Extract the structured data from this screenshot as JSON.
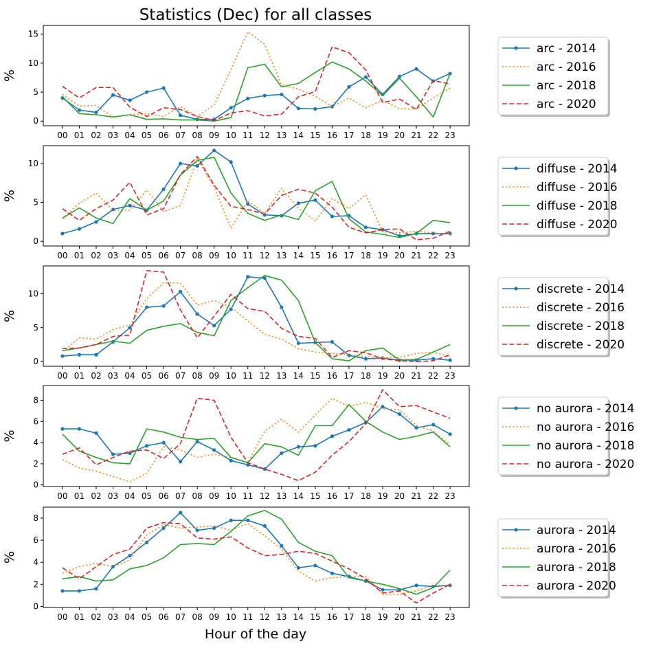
{
  "figure": {
    "title": "Statistics (Dec) for all classes",
    "xlabel": "Hour of the day"
  },
  "chart_data": [
    {
      "type": "line",
      "ylabel": "%",
      "ylim": [
        -0.8,
        16.5
      ],
      "yticks": [
        0,
        5,
        10,
        15
      ],
      "x": [
        "00",
        "01",
        "02",
        "03",
        "04",
        "05",
        "06",
        "07",
        "08",
        "09",
        "10",
        "11",
        "12",
        "13",
        "14",
        "15",
        "16",
        "17",
        "18",
        "19",
        "20",
        "21",
        "22",
        "23"
      ],
      "legend_position": "right",
      "series": [
        {
          "name": "arc - 2014",
          "color": "#1f77b4",
          "dash": "solid",
          "marker": true,
          "values": [
            4.0,
            1.9,
            1.5,
            4.5,
            3.6,
            5.0,
            5.7,
            1.0,
            0.3,
            0.3,
            2.3,
            3.9,
            4.4,
            4.6,
            2.2,
            2.1,
            2.5,
            5.9,
            7.6,
            4.6,
            7.7,
            9.0,
            6.9,
            8.2
          ]
        },
        {
          "name": "arc - 2016",
          "color": "#ff7f0e",
          "dash": "dotted",
          "marker": false,
          "values": [
            4.6,
            2.6,
            2.7,
            0.7,
            1.1,
            1.3,
            0.8,
            2.5,
            0.8,
            2.8,
            8.9,
            15.4,
            13.2,
            6.2,
            5.5,
            4.3,
            2.5,
            4.0,
            2.3,
            3.6,
            2.1,
            2.1,
            4.0,
            5.7
          ]
        },
        {
          "name": "arc - 2018",
          "color": "#2ca02c",
          "dash": "solid",
          "marker": false,
          "values": [
            4.2,
            1.3,
            1.1,
            0.7,
            1.1,
            0.3,
            0.4,
            0.2,
            0.2,
            0.0,
            0.6,
            9.2,
            9.8,
            5.9,
            6.5,
            8.4,
            10.2,
            9.0,
            6.9,
            4.4,
            7.4,
            4.2,
            0.7,
            8.2
          ]
        },
        {
          "name": "arc - 2020",
          "color": "#d62728",
          "dash": "dashed",
          "marker": false,
          "values": [
            6.0,
            4.0,
            5.8,
            5.8,
            2.4,
            0.8,
            2.3,
            2.0,
            0.8,
            0.1,
            1.4,
            1.8,
            0.9,
            1.2,
            4.2,
            5.1,
            12.8,
            11.8,
            8.8,
            3.2,
            3.8,
            2.0,
            7.0,
            6.4
          ]
        }
      ]
    },
    {
      "type": "line",
      "ylabel": "%",
      "ylim": [
        -0.6,
        12.3
      ],
      "yticks": [
        0,
        5,
        10
      ],
      "x": [
        "00",
        "01",
        "02",
        "03",
        "04",
        "05",
        "06",
        "07",
        "08",
        "09",
        "10",
        "11",
        "12",
        "13",
        "14",
        "15",
        "16",
        "17",
        "18",
        "19",
        "20",
        "21",
        "22",
        "23"
      ],
      "legend_position": "right",
      "series": [
        {
          "name": "diffuse - 2014",
          "color": "#1f77b4",
          "dash": "solid",
          "marker": true,
          "values": [
            1.0,
            1.6,
            2.5,
            4.1,
            4.6,
            4.0,
            6.7,
            10.0,
            9.7,
            11.7,
            10.2,
            4.8,
            3.4,
            3.3,
            4.9,
            5.3,
            3.2,
            3.3,
            1.8,
            1.5,
            0.7,
            1.0,
            1.0,
            1.0
          ]
        },
        {
          "name": "diffuse - 2016",
          "color": "#ff7f0e",
          "dash": "dotted",
          "marker": false,
          "values": [
            2.9,
            4.9,
            6.2,
            4.0,
            4.0,
            6.6,
            3.8,
            4.6,
            10.6,
            7.0,
            1.7,
            5.2,
            3.6,
            6.8,
            4.3,
            2.6,
            5.5,
            4.2,
            6.0,
            1.2,
            1.1,
            1.3,
            1.1,
            0.9
          ]
        },
        {
          "name": "diffuse - 2018",
          "color": "#2ca02c",
          "dash": "solid",
          "marker": false,
          "values": [
            3.0,
            4.3,
            3.0,
            2.3,
            5.5,
            4.0,
            5.2,
            8.5,
            10.4,
            10.8,
            6.2,
            3.6,
            2.7,
            3.4,
            2.8,
            6.5,
            7.7,
            2.9,
            1.2,
            0.9,
            0.5,
            1.0,
            2.7,
            2.4
          ]
        },
        {
          "name": "diffuse - 2020",
          "color": "#d62728",
          "dash": "dashed",
          "marker": false,
          "values": [
            4.2,
            2.7,
            4.2,
            5.3,
            7.6,
            3.4,
            4.2,
            8.6,
            10.9,
            7.2,
            4.5,
            4.1,
            3.5,
            5.9,
            6.7,
            6.2,
            4.4,
            1.8,
            1.1,
            1.5,
            1.6,
            0.2,
            0.4,
            1.3
          ]
        }
      ]
    },
    {
      "type": "line",
      "ylabel": "%",
      "ylim": [
        -0.7,
        14.1
      ],
      "yticks": [
        0,
        5,
        10
      ],
      "x": [
        "00",
        "01",
        "02",
        "03",
        "04",
        "05",
        "06",
        "07",
        "08",
        "09",
        "10",
        "11",
        "12",
        "13",
        "14",
        "15",
        "16",
        "17",
        "18",
        "19",
        "20",
        "21",
        "22",
        "23"
      ],
      "legend_position": "right",
      "series": [
        {
          "name": "discrete - 2014",
          "color": "#1f77b4",
          "dash": "solid",
          "marker": true,
          "values": [
            0.8,
            1.0,
            1.0,
            2.9,
            5.0,
            8.0,
            8.2,
            10.3,
            7.0,
            5.3,
            7.7,
            12.5,
            12.3,
            8.0,
            2.7,
            2.8,
            2.9,
            0.9,
            0.4,
            0.5,
            0.2,
            0.2,
            0.4,
            0.2
          ]
        },
        {
          "name": "discrete - 2016",
          "color": "#ff7f0e",
          "dash": "dotted",
          "marker": false,
          "values": [
            1.5,
            3.5,
            3.3,
            4.7,
            5.4,
            9.3,
            11.6,
            11.6,
            8.3,
            9.0,
            8.0,
            6.0,
            4.0,
            3.3,
            1.9,
            1.4,
            1.2,
            1.0,
            0.7,
            0.6,
            0.6,
            1.2,
            1.4,
            0.7
          ]
        },
        {
          "name": "discrete - 2018",
          "color": "#2ca02c",
          "dash": "solid",
          "marker": false,
          "values": [
            1.6,
            2.0,
            2.5,
            3.0,
            2.7,
            4.6,
            5.2,
            5.6,
            4.3,
            3.8,
            9.0,
            10.9,
            12.7,
            12.0,
            9.0,
            2.8,
            0.4,
            0.1,
            1.6,
            2.0,
            0.2,
            0.3,
            1.4,
            2.5
          ]
        },
        {
          "name": "discrete - 2020",
          "color": "#d62728",
          "dash": "dashed",
          "marker": false,
          "values": [
            1.9,
            2.0,
            2.5,
            3.7,
            3.9,
            13.4,
            13.2,
            7.6,
            3.5,
            6.7,
            9.9,
            7.8,
            7.4,
            4.9,
            3.7,
            3.4,
            0.6,
            1.6,
            1.3,
            0.4,
            0.1,
            0.0,
            0.1,
            1.0
          ]
        }
      ]
    },
    {
      "type": "line",
      "ylabel": "%",
      "ylim": [
        -0.15,
        9.4
      ],
      "yticks": [
        0,
        2,
        4,
        6,
        8
      ],
      "x": [
        "00",
        "01",
        "02",
        "03",
        "04",
        "05",
        "06",
        "07",
        "08",
        "09",
        "10",
        "11",
        "12",
        "13",
        "14",
        "15",
        "16",
        "17",
        "18",
        "19",
        "20",
        "21",
        "22",
        "23"
      ],
      "legend_position": "right",
      "series": [
        {
          "name": "no aurora - 2014",
          "color": "#1f77b4",
          "dash": "solid",
          "marker": true,
          "values": [
            5.3,
            5.3,
            4.9,
            2.9,
            3.0,
            3.7,
            4.0,
            2.2,
            4.1,
            3.3,
            2.3,
            1.9,
            1.5,
            3.0,
            3.6,
            3.7,
            4.6,
            5.2,
            5.9,
            7.4,
            6.7,
            5.4,
            5.7,
            4.8
          ]
        },
        {
          "name": "no aurora - 2016",
          "color": "#ff7f0e",
          "dash": "dotted",
          "marker": false,
          "values": [
            2.4,
            1.6,
            1.3,
            0.8,
            0.3,
            1.1,
            3.6,
            3.3,
            2.6,
            2.9,
            2.6,
            2.1,
            5.1,
            6.2,
            5.0,
            6.6,
            8.2,
            7.4,
            7.8,
            7.2,
            7.1,
            5.6,
            5.1,
            3.8
          ]
        },
        {
          "name": "no aurora - 2018",
          "color": "#2ca02c",
          "dash": "solid",
          "marker": false,
          "values": [
            4.8,
            3.2,
            2.6,
            2.1,
            2.0,
            5.3,
            5.0,
            4.5,
            4.3,
            4.4,
            2.6,
            2.1,
            3.9,
            3.6,
            2.8,
            5.6,
            5.6,
            7.6,
            6.0,
            5.0,
            4.3,
            4.6,
            5.0,
            3.6
          ]
        },
        {
          "name": "no aurora - 2020",
          "color": "#d62728",
          "dash": "dashed",
          "marker": false,
          "values": [
            2.9,
            3.5,
            1.9,
            2.6,
            3.2,
            3.3,
            2.5,
            3.9,
            8.2,
            8.0,
            4.5,
            2.1,
            1.5,
            1.0,
            0.4,
            1.2,
            2.8,
            4.1,
            5.8,
            9.0,
            7.4,
            7.5,
            6.9,
            6.3
          ]
        }
      ]
    },
    {
      "type": "line",
      "ylabel": "%",
      "ylim": [
        -0.1,
        9.0
      ],
      "yticks": [
        0,
        2,
        4,
        6,
        8
      ],
      "x": [
        "00",
        "01",
        "02",
        "03",
        "04",
        "05",
        "06",
        "07",
        "08",
        "09",
        "10",
        "11",
        "12",
        "13",
        "14",
        "15",
        "16",
        "17",
        "18",
        "19",
        "20",
        "21",
        "22",
        "23"
      ],
      "legend_position": "right",
      "series": [
        {
          "name": "aurora - 2014",
          "color": "#1f77b4",
          "dash": "solid",
          "marker": true,
          "values": [
            1.4,
            1.4,
            1.6,
            3.6,
            4.6,
            5.8,
            7.1,
            8.5,
            6.9,
            7.1,
            7.8,
            7.8,
            7.3,
            5.5,
            3.5,
            3.7,
            3.0,
            2.7,
            2.3,
            1.5,
            1.5,
            1.9,
            1.8,
            1.9
          ]
        },
        {
          "name": "aurora - 2016",
          "color": "#ff7f0e",
          "dash": "dotted",
          "marker": false,
          "values": [
            3.0,
            3.6,
            3.9,
            3.6,
            4.2,
            6.5,
            7.4,
            7.1,
            7.2,
            7.3,
            6.9,
            7.5,
            6.4,
            5.2,
            3.2,
            2.3,
            2.6,
            2.7,
            2.7,
            1.1,
            1.1,
            1.4,
            1.9,
            1.9
          ]
        },
        {
          "name": "aurora - 2018",
          "color": "#2ca02c",
          "dash": "solid",
          "marker": false,
          "values": [
            2.5,
            2.7,
            2.3,
            2.4,
            3.4,
            3.7,
            4.4,
            5.6,
            5.7,
            5.6,
            6.8,
            8.2,
            8.7,
            7.9,
            5.8,
            5.0,
            4.6,
            2.6,
            2.3,
            2.0,
            1.6,
            1.1,
            1.7,
            3.3
          ]
        },
        {
          "name": "aurora - 2020",
          "color": "#d62728",
          "dash": "dashed",
          "marker": false,
          "values": [
            3.5,
            2.5,
            3.6,
            4.7,
            5.2,
            7.1,
            7.6,
            7.5,
            6.2,
            6.1,
            6.3,
            5.3,
            4.6,
            4.7,
            5.0,
            4.8,
            4.1,
            3.4,
            2.5,
            1.2,
            1.4,
            0.3,
            1.2,
            2.0
          ]
        }
      ]
    }
  ]
}
